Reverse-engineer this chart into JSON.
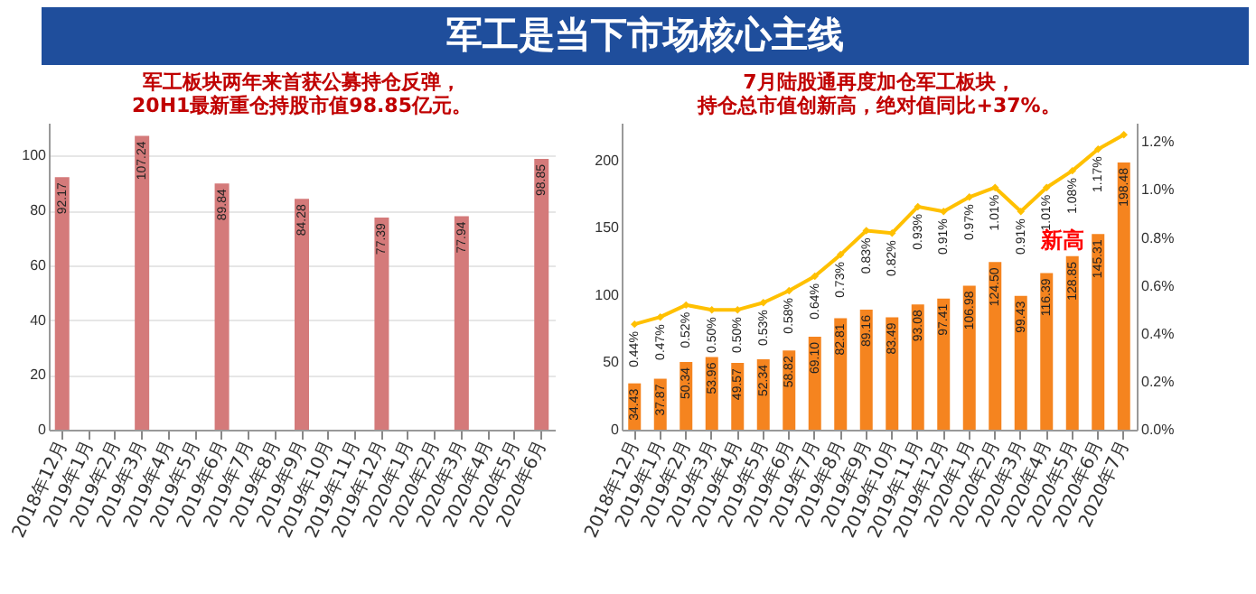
{
  "chart_data": [
    {
      "type": "other",
      "title": "军工是当下市场核心主线"
    },
    {
      "type": "bar",
      "title": "军工板块两年来首获公募持仓反弹，20H1最新重仓持股市值98.85亿元。",
      "categories": [
        "2018年12月",
        "2019年1月",
        "2019年2月",
        "2019年3月",
        "2019年4月",
        "2019年5月",
        "2019年6月",
        "2019年7月",
        "2019年8月",
        "2019年9月",
        "2019年10月",
        "2019年11月",
        "2019年12月",
        "2020年1月",
        "2020年2月",
        "2020年3月",
        "2020年4月",
        "2020年5月",
        "2020年6月"
      ],
      "values": [
        92.17,
        null,
        null,
        107.24,
        null,
        null,
        89.84,
        null,
        null,
        84.28,
        null,
        null,
        77.39,
        null,
        null,
        77.94,
        null,
        null,
        98.85
      ],
      "color": "#d47a7a",
      "ylim": [
        0,
        112
      ],
      "yticks": [
        0,
        20,
        40,
        60,
        80,
        100
      ],
      "grid": "y",
      "data_labels": true
    },
    {
      "type": "bar",
      "title": "7月陆股通再度加仓军工板块，持仓总市值创新高，绝对值同比+37%。",
      "categories": [
        "2018年12月",
        "2019年1月",
        "2019年2月",
        "2019年3月",
        "2019年4月",
        "2019年5月",
        "2019年6月",
        "2019年7月",
        "2019年8月",
        "2019年9月",
        "2019年10月",
        "2019年11月",
        "2019年12月",
        "2020年1月",
        "2020年2月",
        "2020年3月",
        "2020年4月",
        "2020年5月",
        "2020年6月",
        "2020年7月"
      ],
      "series": [
        {
          "type": "bar",
          "color": "#f5841f",
          "values": [
            34.43,
            37.87,
            50.34,
            53.96,
            49.57,
            52.34,
            58.82,
            69.1,
            82.81,
            89.16,
            83.49,
            93.08,
            97.41,
            106.98,
            124.5,
            99.43,
            116.39,
            128.85,
            145.31,
            198.48
          ],
          "value_labels": [
            "34.43",
            "37.87",
            "50.34",
            "53.96",
            "49.57",
            "52.34",
            "58.82",
            "69.10",
            "82.81",
            "89.16",
            "83.49",
            "93.08",
            "97.41",
            "106.98",
            "124.50",
            "99.43",
            "116.39",
            "128.85",
            "145.31",
            "198.48"
          ]
        },
        {
          "type": "line",
          "axis": "y2",
          "color": "#ffc000",
          "marker": "diamond",
          "values": [
            0.44,
            0.47,
            0.52,
            0.5,
            0.5,
            0.53,
            0.58,
            0.64,
            0.73,
            0.83,
            0.82,
            0.93,
            0.91,
            0.97,
            1.01,
            0.91,
            1.01,
            1.08,
            1.17,
            1.23
          ],
          "value_labels": [
            "0.44%",
            "0.47%",
            "0.52%",
            "0.50%",
            "0.50%",
            "0.53%",
            "0.58%",
            "0.64%",
            "0.73%",
            "0.83%",
            "0.82%",
            "0.93%",
            "0.91%",
            "0.97%",
            "1.01%",
            "0.91%",
            "1.01%",
            "1.08%",
            "1.17%",
            null
          ]
        }
      ],
      "ylim": [
        0,
        228
      ],
      "yticks": [
        0,
        50,
        100,
        150,
        200
      ],
      "y2lim": [
        0,
        1.28
      ],
      "y2ticks": [
        {
          "value": 0,
          "label": "0.0%"
        },
        {
          "value": 0.2,
          "label": "0.2%"
        },
        {
          "value": 0.4,
          "label": "0.4%"
        },
        {
          "value": 0.6,
          "label": "0.6%"
        },
        {
          "value": 0.8,
          "label": "0.8%"
        },
        {
          "value": 1.0,
          "label": "1.0%"
        },
        {
          "value": 1.2,
          "label": "1.2%"
        }
      ],
      "grid": false,
      "annotations": [
        {
          "text": "新高",
          "x": "2020年7月",
          "y": 141
        }
      ]
    }
  ]
}
